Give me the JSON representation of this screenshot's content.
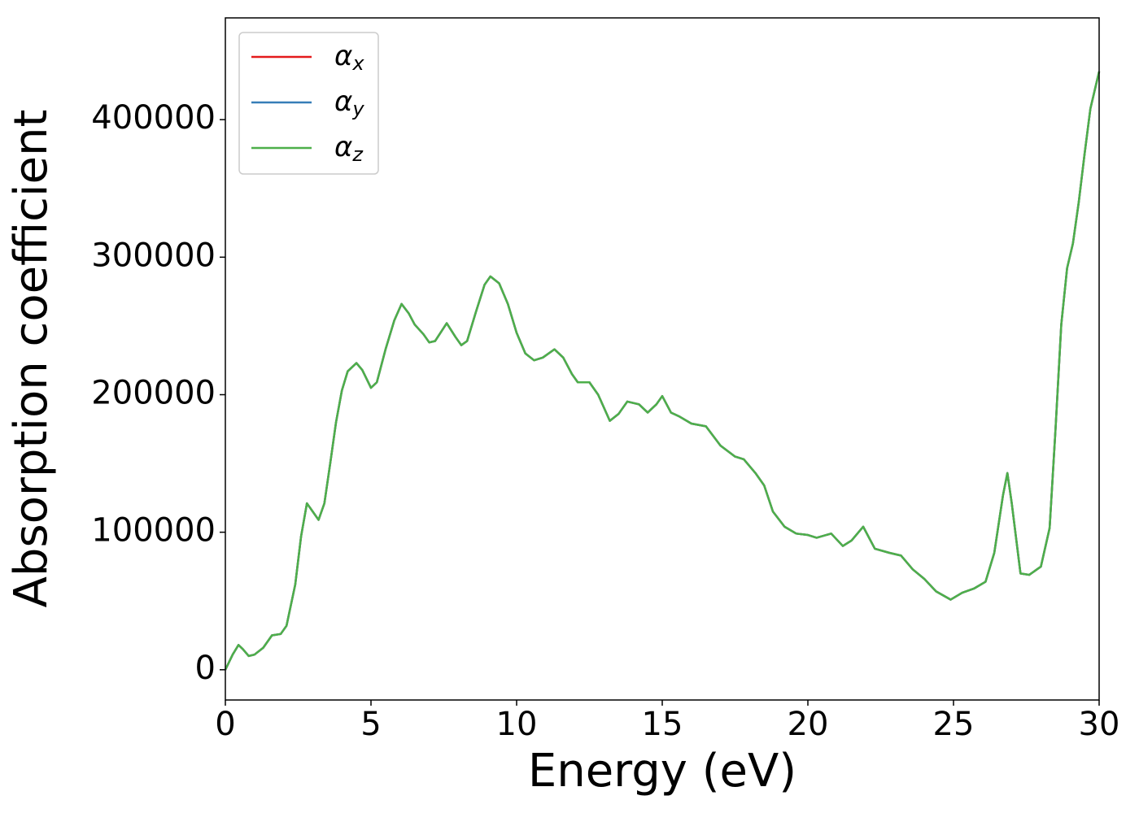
{
  "chart_data": {
    "type": "line",
    "xlabel": "Energy (eV)",
    "ylabel": "Absorption coefficient",
    "x": [
      0,
      0.25,
      0.45,
      0.6,
      0.8,
      1.0,
      1.3,
      1.6,
      1.9,
      2.1,
      2.4,
      2.6,
      2.8,
      3.0,
      3.2,
      3.4,
      3.6,
      3.8,
      4.0,
      4.2,
      4.5,
      4.7,
      5.0,
      5.2,
      5.5,
      5.8,
      6.05,
      6.3,
      6.5,
      6.8,
      7.0,
      7.2,
      7.6,
      7.9,
      8.1,
      8.3,
      8.6,
      8.9,
      9.1,
      9.4,
      9.7,
      10.0,
      10.3,
      10.6,
      10.9,
      11.3,
      11.6,
      11.9,
      12.1,
      12.5,
      12.8,
      13.2,
      13.5,
      13.8,
      14.2,
      14.5,
      14.8,
      15.0,
      15.3,
      15.6,
      16.0,
      16.5,
      17.0,
      17.5,
      17.8,
      18.2,
      18.5,
      18.8,
      19.2,
      19.6,
      20.0,
      20.3,
      20.8,
      21.2,
      21.5,
      21.9,
      22.3,
      22.8,
      23.2,
      23.6,
      24.0,
      24.4,
      24.9,
      25.3,
      25.7,
      26.1,
      26.4,
      26.7,
      26.85,
      27.0,
      27.3,
      27.6,
      28.0,
      28.3,
      28.5,
      28.7,
      28.9,
      29.1,
      29.3,
      29.5,
      29.7,
      30.0
    ],
    "series": [
      {
        "name": "αx",
        "color": "#e41a1c",
        "values": [
          0,
          11000,
          18000,
          15000,
          10000,
          11000,
          16000,
          25000,
          26000,
          32000,
          62000,
          97000,
          121000,
          115000,
          109000,
          121000,
          150000,
          180000,
          203000,
          217000,
          223000,
          218000,
          205000,
          209000,
          233000,
          254000,
          266000,
          259000,
          251000,
          244000,
          238000,
          239000,
          252000,
          242000,
          236000,
          239000,
          260000,
          280000,
          286000,
          281000,
          266000,
          245000,
          230000,
          225000,
          227000,
          233000,
          227000,
          215000,
          209000,
          209000,
          200000,
          181000,
          186000,
          195000,
          193000,
          187000,
          193000,
          199000,
          187000,
          184000,
          179000,
          177000,
          163000,
          155000,
          153000,
          143000,
          134000,
          115000,
          104000,
          99000,
          98000,
          96000,
          99000,
          90000,
          94000,
          104000,
          88000,
          85000,
          83000,
          73000,
          66000,
          57000,
          51000,
          56000,
          59000,
          64000,
          85000,
          127000,
          143000,
          121000,
          70000,
          69000,
          75000,
          103000,
          174000,
          251000,
          292000,
          310000,
          340000,
          375000,
          408000,
          435000
        ]
      },
      {
        "name": "αy",
        "color": "#377eb8",
        "values": [
          0,
          11000,
          18000,
          15000,
          10000,
          11000,
          16000,
          25000,
          26000,
          32000,
          62000,
          97000,
          121000,
          115000,
          109000,
          121000,
          150000,
          180000,
          203000,
          217000,
          223000,
          218000,
          205000,
          209000,
          233000,
          254000,
          266000,
          259000,
          251000,
          244000,
          238000,
          239000,
          252000,
          242000,
          236000,
          239000,
          260000,
          280000,
          286000,
          281000,
          266000,
          245000,
          230000,
          225000,
          227000,
          233000,
          227000,
          215000,
          209000,
          209000,
          200000,
          181000,
          186000,
          195000,
          193000,
          187000,
          193000,
          199000,
          187000,
          184000,
          179000,
          177000,
          163000,
          155000,
          153000,
          143000,
          134000,
          115000,
          104000,
          99000,
          98000,
          96000,
          99000,
          90000,
          94000,
          104000,
          88000,
          85000,
          83000,
          73000,
          66000,
          57000,
          51000,
          56000,
          59000,
          64000,
          85000,
          127000,
          143000,
          121000,
          70000,
          69000,
          75000,
          103000,
          174000,
          251000,
          292000,
          310000,
          340000,
          375000,
          408000,
          435000
        ]
      },
      {
        "name": "αz",
        "color": "#4daf4a",
        "values": [
          0,
          11000,
          18000,
          15000,
          10000,
          11000,
          16000,
          25000,
          26000,
          32000,
          62000,
          97000,
          121000,
          115000,
          109000,
          121000,
          150000,
          180000,
          203000,
          217000,
          223000,
          218000,
          205000,
          209000,
          233000,
          254000,
          266000,
          259000,
          251000,
          244000,
          238000,
          239000,
          252000,
          242000,
          236000,
          239000,
          260000,
          280000,
          286000,
          281000,
          266000,
          245000,
          230000,
          225000,
          227000,
          233000,
          227000,
          215000,
          209000,
          209000,
          200000,
          181000,
          186000,
          195000,
          193000,
          187000,
          193000,
          199000,
          187000,
          184000,
          179000,
          177000,
          163000,
          155000,
          153000,
          143000,
          134000,
          115000,
          104000,
          99000,
          98000,
          96000,
          99000,
          90000,
          94000,
          104000,
          88000,
          85000,
          83000,
          73000,
          66000,
          57000,
          51000,
          56000,
          59000,
          64000,
          85000,
          127000,
          143000,
          121000,
          70000,
          69000,
          75000,
          103000,
          174000,
          251000,
          292000,
          310000,
          340000,
          375000,
          408000,
          435000
        ]
      }
    ],
    "xlim": [
      0,
      30
    ],
    "xticks": [
      0,
      5,
      10,
      15,
      20,
      25,
      30
    ],
    "ylim": [
      -22000,
      474000
    ],
    "yticks": [
      0,
      100000,
      200000,
      300000,
      400000
    ],
    "legend": "upper left"
  }
}
